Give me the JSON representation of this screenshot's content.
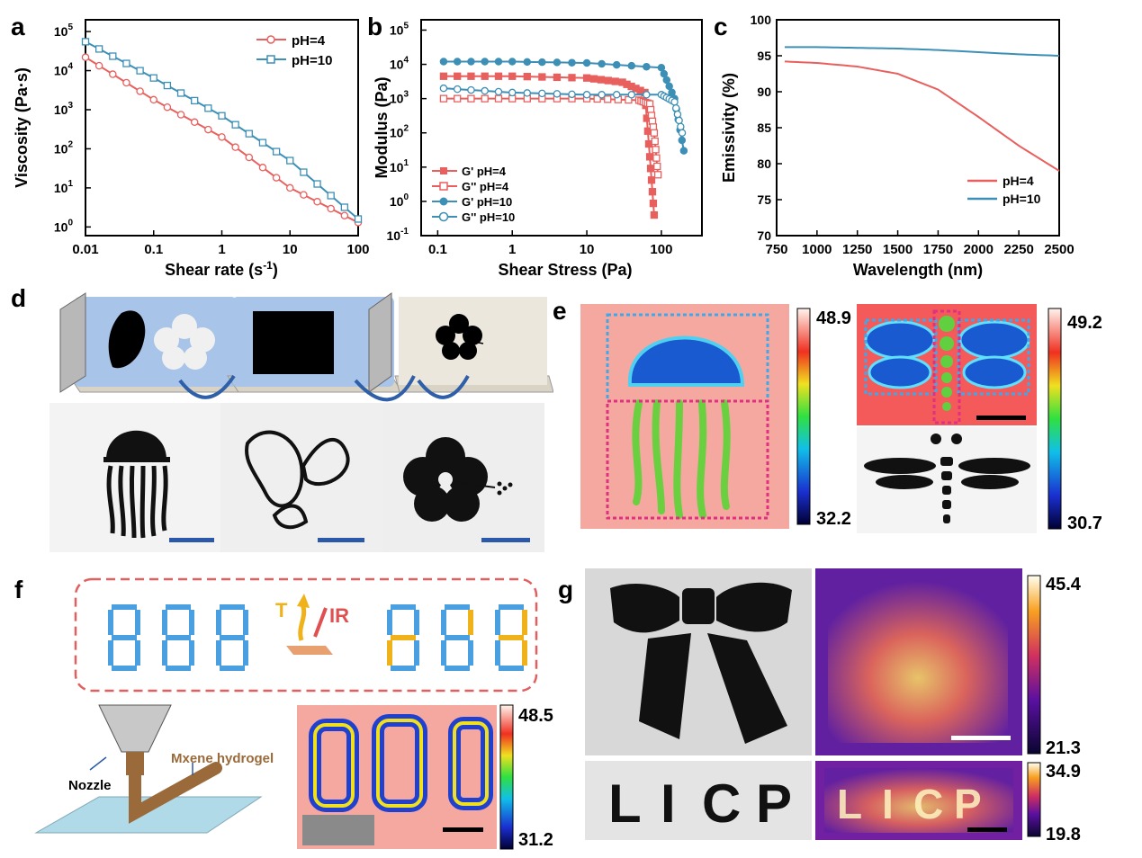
{
  "panel_letters": {
    "a": "a",
    "b": "b",
    "c": "c",
    "d": "d",
    "e": "e",
    "f": "f",
    "g": "g"
  },
  "chart_data": [
    {
      "type": "line",
      "panel": "a",
      "xlabel": "Shear rate (s",
      "xlabel_sup": "-1",
      "xlabel_end": ")",
      "ylabel": "Viscosity (Pa·s)",
      "xscale": "log",
      "yscale": "log",
      "xlim": [
        0.01,
        100
      ],
      "ylim": [
        0.6,
        200000
      ],
      "x_ticks": [
        "0.01",
        "0.1",
        "1",
        "10",
        "100"
      ],
      "y_ticks": [
        {
          "base": "10",
          "exp": "0"
        },
        {
          "base": "10",
          "exp": "1"
        },
        {
          "base": "10",
          "exp": "2"
        },
        {
          "base": "10",
          "exp": "3"
        },
        {
          "base": "10",
          "exp": "4"
        },
        {
          "base": "10",
          "exp": "5"
        }
      ],
      "legend_position": "top-right",
      "series": [
        {
          "name": "pH=4",
          "color": "#e8605e",
          "marker": "circle",
          "x": [
            0.01,
            0.1,
            1,
            10,
            100
          ],
          "y": [
            22000,
            1800,
            200,
            10,
            1.3
          ]
        },
        {
          "name": "pH=10",
          "color": "#3d8fb5",
          "marker": "square",
          "x": [
            0.01,
            0.1,
            1,
            10,
            100
          ],
          "y": [
            55000,
            6500,
            700,
            50,
            1.6
          ]
        }
      ]
    },
    {
      "type": "scatter",
      "panel": "b",
      "xlabel": "Shear Stress (Pa)",
      "ylabel": "Modulus (Pa)",
      "xscale": "log",
      "yscale": "log",
      "xlim": [
        0.06,
        350
      ],
      "ylim": [
        0.1,
        200000
      ],
      "x_ticks": [
        "0.1",
        "1",
        "10",
        "100"
      ],
      "y_ticks": [
        {
          "base": "10",
          "exp": "-1"
        },
        {
          "base": "10",
          "exp": "0"
        },
        {
          "base": "10",
          "exp": "1"
        },
        {
          "base": "10",
          "exp": "2"
        },
        {
          "base": "10",
          "exp": "3"
        },
        {
          "base": "10",
          "exp": "4"
        },
        {
          "base": "10",
          "exp": "5"
        }
      ],
      "legend_position": "bottom-left",
      "series": [
        {
          "name": "G'  pH=4",
          "color": "#e8605e",
          "marker": "square-filled",
          "x": [
            0.12,
            1,
            10,
            30,
            60,
            70,
            80
          ],
          "y": [
            4500,
            4500,
            4000,
            3000,
            1500,
            20,
            0.4
          ]
        },
        {
          "name": "G''  pH=4",
          "color": "#e8605e",
          "marker": "square-open",
          "x": [
            0.12,
            1,
            10,
            50,
            70,
            80,
            90
          ],
          "y": [
            1000,
            1000,
            1000,
            900,
            700,
            100,
            6
          ]
        },
        {
          "name": "G'  pH=10",
          "color": "#3d8fb5",
          "marker": "circle-filled",
          "x": [
            0.12,
            1,
            10,
            100,
            150,
            200
          ],
          "y": [
            12000,
            12000,
            11000,
            8000,
            1000,
            30
          ]
        },
        {
          "name": "G''  pH=10",
          "color": "#3d8fb5",
          "marker": "circle-open",
          "x": [
            0.12,
            1,
            10,
            100,
            150,
            190
          ],
          "y": [
            2000,
            1500,
            1300,
            1300,
            800,
            100
          ]
        }
      ]
    },
    {
      "type": "line",
      "panel": "c",
      "xlabel": "Wavelength (nm)",
      "ylabel": "Emissivity (%)",
      "xlim": [
        750,
        2500
      ],
      "ylim": [
        70,
        100
      ],
      "x_ticks": [
        "750",
        "1000",
        "1250",
        "1500",
        "1750",
        "2000",
        "2250",
        "2500"
      ],
      "y_ticks": [
        "70",
        "75",
        "80",
        "85",
        "90",
        "95",
        "100"
      ],
      "legend_position": "bottom-right",
      "series": [
        {
          "name": "pH=4",
          "color": "#e8605e",
          "x": [
            800,
            1000,
            1250,
            1500,
            1750,
            2000,
            2250,
            2500
          ],
          "y": [
            94.2,
            94.0,
            93.5,
            92.5,
            90.3,
            86.5,
            82.5,
            79.0
          ]
        },
        {
          "name": "pH=10",
          "color": "#3d8fb5",
          "x": [
            800,
            1000,
            1250,
            1500,
            1750,
            2000,
            2250,
            2500
          ],
          "y": [
            96.2,
            96.2,
            96.1,
            96.0,
            95.8,
            95.5,
            95.2,
            95.0
          ]
        }
      ]
    }
  ],
  "colorbars": {
    "e_left": {
      "max": "48.9",
      "min": "32.2"
    },
    "e_right": {
      "max": "49.2",
      "min": "30.7"
    },
    "f": {
      "max": "48.5",
      "min": "31.2"
    },
    "g_top": {
      "max": "45.4",
      "min": "21.3"
    },
    "g_bottom": {
      "max": "34.9",
      "min": "19.8"
    }
  },
  "panel_f": {
    "label_T": "T",
    "label_IR": "IR",
    "nozzle_label": "Nozzle",
    "hydrogel_label": "Mxene hydrogel"
  },
  "panel_g": {
    "letters": [
      "L",
      "I",
      "C",
      "P"
    ]
  },
  "colors": {
    "red": "#e8605e",
    "blue": "#3d8fb5",
    "segment_blue": "#4a9fe0",
    "segment_orange": "#f0b21a",
    "scalebar_blue": "#2b58a8"
  }
}
